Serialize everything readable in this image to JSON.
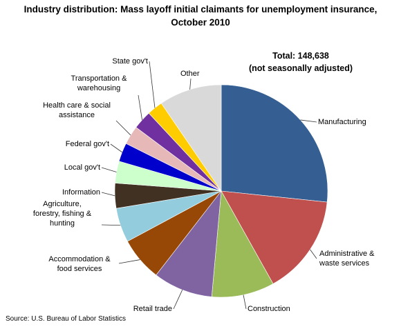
{
  "chart_data": {
    "type": "pie",
    "title_line1": "Industry distribution: Mass layoff initial claimants for unemployment insurance,",
    "title_line2": "October 2010",
    "total_line1": "Total:  148,638",
    "total_line2": "(not seasonally adjusted)",
    "source": "Source: U.S. Bureau of Labor Statistics",
    "slices": [
      {
        "label": [
          "Manufacturing"
        ],
        "value": 28.0,
        "color": "#355F93"
      },
      {
        "label": [
          "Administrative &",
          "waste services"
        ],
        "value": 16.0,
        "color": "#C0504D"
      },
      {
        "label": [
          "Construction"
        ],
        "value": 10.0,
        "color": "#9BBB59"
      },
      {
        "label": [
          "Retail trade"
        ],
        "value": 9.5,
        "color": "#8064A2"
      },
      {
        "label": [
          "Accommodation &",
          "food services"
        ],
        "value": 7.0,
        "color": "#974806"
      },
      {
        "label": [
          "Agriculture,",
          "forestry, fishing &",
          "hunting"
        ],
        "value": 5.5,
        "color": "#93CDDD"
      },
      {
        "label": [
          "Information"
        ],
        "value": 4.0,
        "color": "#403123"
      },
      {
        "label": [
          "Local gov't"
        ],
        "value": 3.5,
        "color": "#CCFFCC"
      },
      {
        "label": [
          "Federal gov't"
        ],
        "value": 3.0,
        "color": "#0000CC"
      },
      {
        "label": [
          "Health care & social",
          "assistance"
        ],
        "value": 3.0,
        "color": "#E6B9B8"
      },
      {
        "label": [
          "Transportation &",
          "warehousing"
        ],
        "value": 3.0,
        "color": "#7030A0"
      },
      {
        "label": [
          "State gov't"
        ],
        "value": 2.5,
        "color": "#FFCC00"
      },
      {
        "label": [
          "Other"
        ],
        "value": 10.0,
        "color": "#D9D9D9"
      }
    ]
  }
}
